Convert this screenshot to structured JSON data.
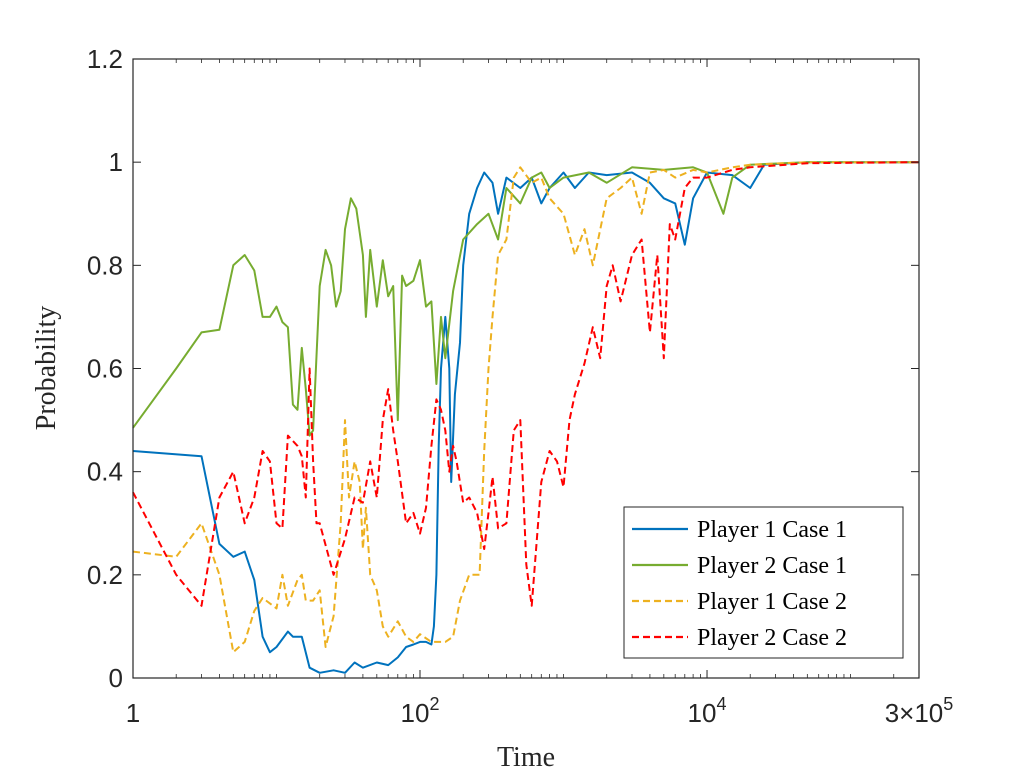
{
  "chart_data": {
    "type": "line",
    "title": "",
    "xlabel": "Time",
    "ylabel": "Probability",
    "xscale": "log",
    "xlim": [
      1,
      300000
    ],
    "ylim": [
      0,
      1.2
    ],
    "yticks": [
      0,
      0.2,
      0.4,
      0.6,
      0.8,
      1,
      1.2
    ],
    "ytick_labels": [
      "0",
      "0.2",
      "0.4",
      "0.6",
      "0.8",
      "1",
      "1.2"
    ],
    "xticks": [
      {
        "value": 1,
        "base": "1",
        "exp": ""
      },
      {
        "value": 100,
        "base": "10",
        "exp": "2"
      },
      {
        "value": 10000,
        "base": "10",
        "exp": "4"
      },
      {
        "value": 300000,
        "base": "3×10",
        "exp": "5"
      }
    ],
    "grid": false,
    "legend_position": "bottom-right",
    "series": [
      {
        "name": "Player 1 Case 1",
        "color": "#0072BD",
        "dash": "solid",
        "points": [
          [
            1,
            0.44
          ],
          [
            3,
            0.43
          ],
          [
            4,
            0.26
          ],
          [
            5,
            0.235
          ],
          [
            6,
            0.245
          ],
          [
            7,
            0.19
          ],
          [
            8,
            0.08
          ],
          [
            9,
            0.05
          ],
          [
            10,
            0.06
          ],
          [
            12,
            0.09
          ],
          [
            13,
            0.08
          ],
          [
            15,
            0.08
          ],
          [
            17,
            0.02
          ],
          [
            20,
            0.01
          ],
          [
            25,
            0.015
          ],
          [
            30,
            0.01
          ],
          [
            35,
            0.03
          ],
          [
            40,
            0.02
          ],
          [
            50,
            0.03
          ],
          [
            60,
            0.025
          ],
          [
            70,
            0.04
          ],
          [
            80,
            0.06
          ],
          [
            90,
            0.065
          ],
          [
            100,
            0.07
          ],
          [
            110,
            0.07
          ],
          [
            120,
            0.065
          ],
          [
            125,
            0.1
          ],
          [
            130,
            0.2
          ],
          [
            135,
            0.45
          ],
          [
            140,
            0.6
          ],
          [
            150,
            0.7
          ],
          [
            160,
            0.6
          ],
          [
            165,
            0.38
          ],
          [
            175,
            0.55
          ],
          [
            190,
            0.65
          ],
          [
            200,
            0.8
          ],
          [
            220,
            0.9
          ],
          [
            250,
            0.95
          ],
          [
            280,
            0.98
          ],
          [
            320,
            0.96
          ],
          [
            350,
            0.9
          ],
          [
            400,
            0.97
          ],
          [
            500,
            0.95
          ],
          [
            600,
            0.97
          ],
          [
            700,
            0.92
          ],
          [
            800,
            0.95
          ],
          [
            1000,
            0.98
          ],
          [
            1200,
            0.95
          ],
          [
            1500,
            0.98
          ],
          [
            2000,
            0.975
          ],
          [
            3000,
            0.98
          ],
          [
            4000,
            0.96
          ],
          [
            5000,
            0.93
          ],
          [
            6000,
            0.92
          ],
          [
            7000,
            0.84
          ],
          [
            8000,
            0.93
          ],
          [
            10000,
            0.98
          ],
          [
            15000,
            0.975
          ],
          [
            20000,
            0.95
          ],
          [
            25000,
            0.995
          ],
          [
            50000,
            1.0
          ],
          [
            300000,
            1.0
          ]
        ]
      },
      {
        "name": "Player 2 Case 1",
        "color": "#77AC30",
        "dash": "solid",
        "points": [
          [
            1,
            0.485
          ],
          [
            2,
            0.6
          ],
          [
            3,
            0.67
          ],
          [
            4,
            0.675
          ],
          [
            5,
            0.8
          ],
          [
            6,
            0.82
          ],
          [
            7,
            0.79
          ],
          [
            8,
            0.7
          ],
          [
            9,
            0.7
          ],
          [
            10,
            0.72
          ],
          [
            11,
            0.69
          ],
          [
            12,
            0.68
          ],
          [
            13,
            0.53
          ],
          [
            14,
            0.52
          ],
          [
            15,
            0.64
          ],
          [
            16,
            0.56
          ],
          [
            17,
            0.47
          ],
          [
            18,
            0.48
          ],
          [
            20,
            0.76
          ],
          [
            22,
            0.83
          ],
          [
            24,
            0.8
          ],
          [
            26,
            0.72
          ],
          [
            28,
            0.75
          ],
          [
            30,
            0.87
          ],
          [
            33,
            0.93
          ],
          [
            36,
            0.91
          ],
          [
            40,
            0.82
          ],
          [
            42,
            0.7
          ],
          [
            45,
            0.83
          ],
          [
            50,
            0.72
          ],
          [
            55,
            0.81
          ],
          [
            60,
            0.74
          ],
          [
            65,
            0.76
          ],
          [
            70,
            0.5
          ],
          [
            75,
            0.78
          ],
          [
            80,
            0.76
          ],
          [
            90,
            0.77
          ],
          [
            100,
            0.81
          ],
          [
            110,
            0.72
          ],
          [
            120,
            0.73
          ],
          [
            130,
            0.57
          ],
          [
            140,
            0.7
          ],
          [
            150,
            0.62
          ],
          [
            170,
            0.75
          ],
          [
            200,
            0.85
          ],
          [
            250,
            0.88
          ],
          [
            300,
            0.9
          ],
          [
            350,
            0.85
          ],
          [
            400,
            0.95
          ],
          [
            500,
            0.92
          ],
          [
            600,
            0.97
          ],
          [
            700,
            0.98
          ],
          [
            800,
            0.95
          ],
          [
            1000,
            0.97
          ],
          [
            1500,
            0.98
          ],
          [
            2000,
            0.96
          ],
          [
            3000,
            0.99
          ],
          [
            5000,
            0.985
          ],
          [
            8000,
            0.99
          ],
          [
            10000,
            0.98
          ],
          [
            13000,
            0.9
          ],
          [
            15000,
            0.97
          ],
          [
            20000,
            0.995
          ],
          [
            50000,
            1.0
          ],
          [
            300000,
            1.0
          ]
        ]
      },
      {
        "name": "Player 1 Case 2",
        "color": "#EDB120",
        "dash": "dashed",
        "points": [
          [
            1,
            0.245
          ],
          [
            2,
            0.235
          ],
          [
            3,
            0.3
          ],
          [
            4,
            0.2
          ],
          [
            5,
            0.05
          ],
          [
            6,
            0.07
          ],
          [
            7,
            0.13
          ],
          [
            8,
            0.155
          ],
          [
            10,
            0.135
          ],
          [
            11,
            0.2
          ],
          [
            12,
            0.14
          ],
          [
            14,
            0.19
          ],
          [
            15,
            0.2
          ],
          [
            16,
            0.15
          ],
          [
            18,
            0.15
          ],
          [
            20,
            0.17
          ],
          [
            22,
            0.06
          ],
          [
            25,
            0.12
          ],
          [
            28,
            0.3
          ],
          [
            30,
            0.5
          ],
          [
            32,
            0.35
          ],
          [
            35,
            0.42
          ],
          [
            38,
            0.38
          ],
          [
            40,
            0.25
          ],
          [
            42,
            0.33
          ],
          [
            45,
            0.2
          ],
          [
            50,
            0.17
          ],
          [
            55,
            0.1
          ],
          [
            60,
            0.08
          ],
          [
            70,
            0.11
          ],
          [
            80,
            0.08
          ],
          [
            90,
            0.07
          ],
          [
            100,
            0.085
          ],
          [
            120,
            0.07
          ],
          [
            150,
            0.07
          ],
          [
            170,
            0.08
          ],
          [
            190,
            0.15
          ],
          [
            220,
            0.2
          ],
          [
            260,
            0.2
          ],
          [
            280,
            0.44
          ],
          [
            300,
            0.6
          ],
          [
            320,
            0.7
          ],
          [
            350,
            0.82
          ],
          [
            400,
            0.85
          ],
          [
            450,
            0.97
          ],
          [
            500,
            0.99
          ],
          [
            600,
            0.96
          ],
          [
            700,
            0.97
          ],
          [
            800,
            0.93
          ],
          [
            1000,
            0.9
          ],
          [
            1200,
            0.82
          ],
          [
            1400,
            0.87
          ],
          [
            1600,
            0.8
          ],
          [
            2000,
            0.93
          ],
          [
            2500,
            0.95
          ],
          [
            3000,
            0.97
          ],
          [
            3500,
            0.9
          ],
          [
            4000,
            0.98
          ],
          [
            5000,
            0.985
          ],
          [
            6000,
            0.97
          ],
          [
            8000,
            0.985
          ],
          [
            10000,
            0.98
          ],
          [
            15000,
            0.99
          ],
          [
            20000,
            0.995
          ],
          [
            50000,
            1.0
          ],
          [
            300000,
            1.0
          ]
        ]
      },
      {
        "name": "Player 2 Case 2",
        "color": "#FF0000",
        "dash": "dashed",
        "points": [
          [
            1,
            0.36
          ],
          [
            2,
            0.2
          ],
          [
            3,
            0.14
          ],
          [
            4,
            0.35
          ],
          [
            5,
            0.4
          ],
          [
            6,
            0.3
          ],
          [
            7,
            0.35
          ],
          [
            8,
            0.44
          ],
          [
            9,
            0.42
          ],
          [
            10,
            0.3
          ],
          [
            11,
            0.29
          ],
          [
            12,
            0.47
          ],
          [
            14,
            0.45
          ],
          [
            15,
            0.43
          ],
          [
            16,
            0.35
          ],
          [
            17,
            0.6
          ],
          [
            18,
            0.42
          ],
          [
            19,
            0.3
          ],
          [
            20,
            0.3
          ],
          [
            25,
            0.2
          ],
          [
            30,
            0.27
          ],
          [
            35,
            0.35
          ],
          [
            40,
            0.34
          ],
          [
            45,
            0.42
          ],
          [
            50,
            0.35
          ],
          [
            55,
            0.5
          ],
          [
            60,
            0.56
          ],
          [
            65,
            0.48
          ],
          [
            70,
            0.42
          ],
          [
            80,
            0.3
          ],
          [
            90,
            0.32
          ],
          [
            100,
            0.28
          ],
          [
            110,
            0.33
          ],
          [
            120,
            0.45
          ],
          [
            130,
            0.54
          ],
          [
            140,
            0.52
          ],
          [
            150,
            0.48
          ],
          [
            160,
            0.4
          ],
          [
            170,
            0.45
          ],
          [
            180,
            0.42
          ],
          [
            200,
            0.34
          ],
          [
            220,
            0.35
          ],
          [
            250,
            0.32
          ],
          [
            280,
            0.25
          ],
          [
            300,
            0.32
          ],
          [
            320,
            0.39
          ],
          [
            350,
            0.29
          ],
          [
            400,
            0.3
          ],
          [
            450,
            0.48
          ],
          [
            500,
            0.5
          ],
          [
            550,
            0.22
          ],
          [
            600,
            0.14
          ],
          [
            700,
            0.38
          ],
          [
            800,
            0.44
          ],
          [
            900,
            0.42
          ],
          [
            1000,
            0.37
          ],
          [
            1100,
            0.5
          ],
          [
            1200,
            0.55
          ],
          [
            1400,
            0.61
          ],
          [
            1600,
            0.68
          ],
          [
            1800,
            0.62
          ],
          [
            2000,
            0.76
          ],
          [
            2200,
            0.8
          ],
          [
            2500,
            0.73
          ],
          [
            3000,
            0.82
          ],
          [
            3500,
            0.85
          ],
          [
            4000,
            0.67
          ],
          [
            4500,
            0.82
          ],
          [
            5000,
            0.62
          ],
          [
            5500,
            0.88
          ],
          [
            6000,
            0.85
          ],
          [
            7000,
            0.95
          ],
          [
            8000,
            0.97
          ],
          [
            10000,
            0.97
          ],
          [
            15000,
            0.985
          ],
          [
            20000,
            0.99
          ],
          [
            50000,
            0.998
          ],
          [
            300000,
            1.0
          ]
        ]
      }
    ]
  }
}
